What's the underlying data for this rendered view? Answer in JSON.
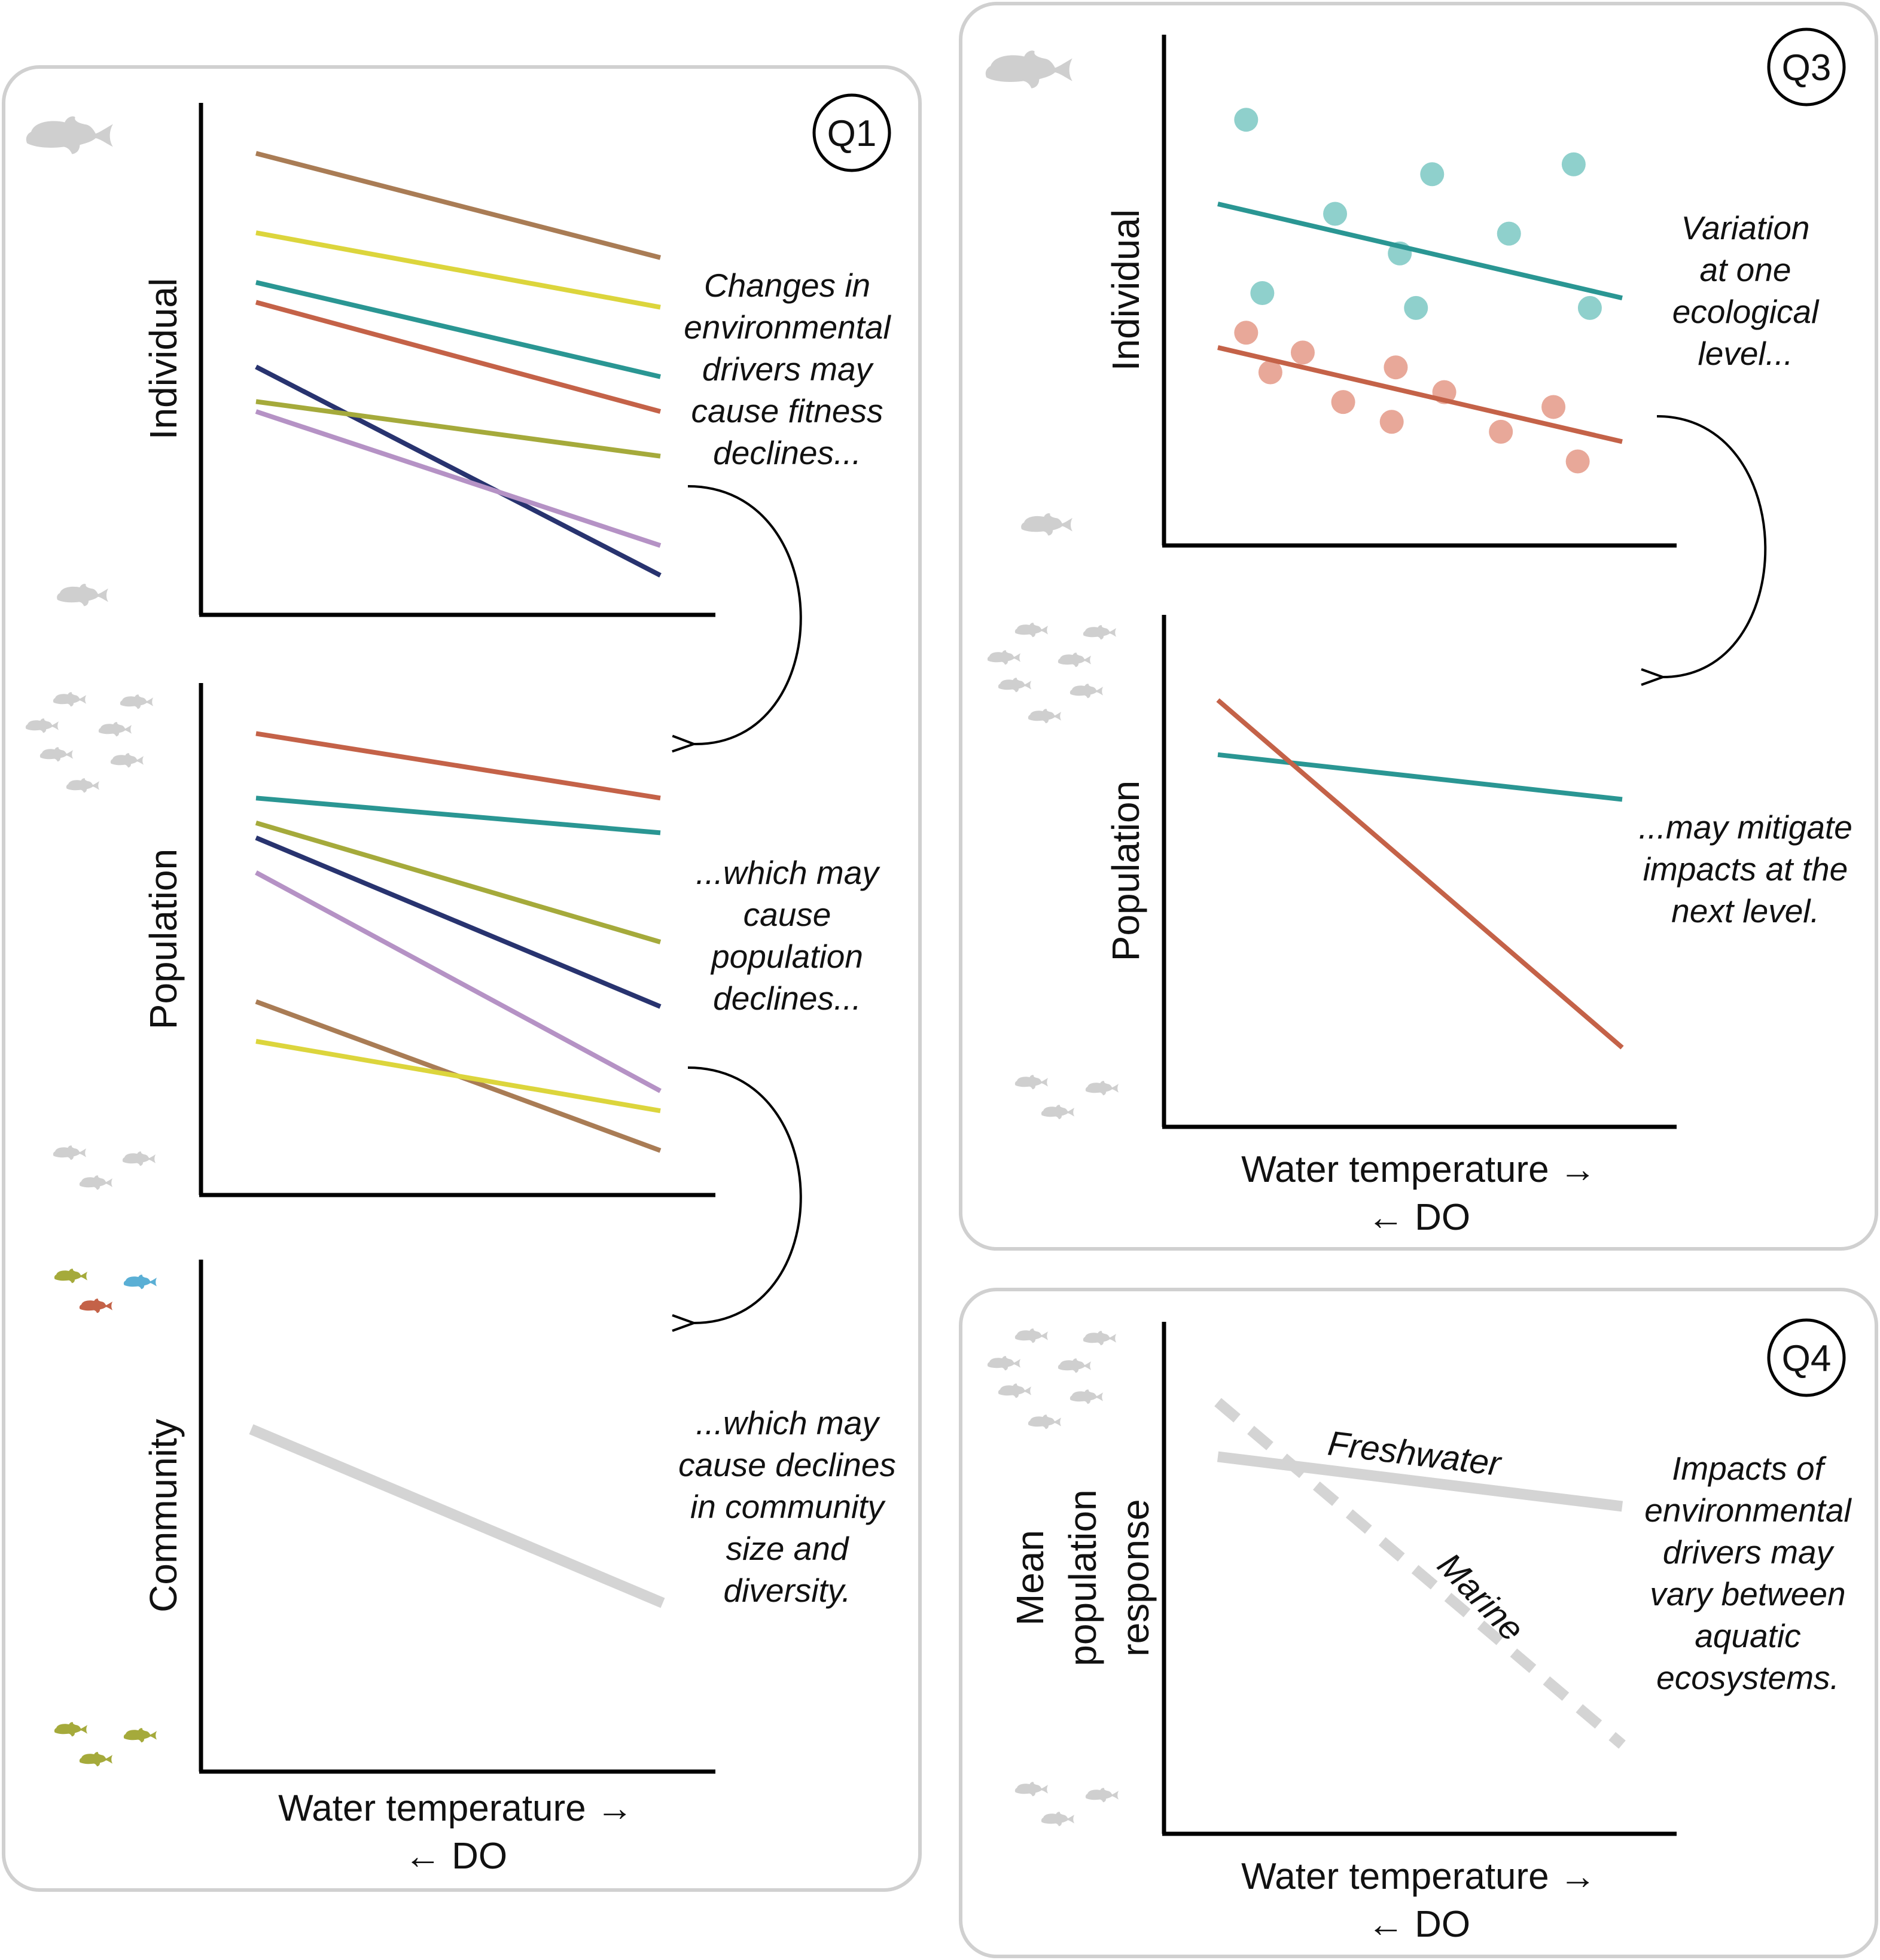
{
  "colors": {
    "panel_border": "#d0d0d0",
    "axis": "#000000",
    "fish_gray": "#cfcfcf",
    "brown": "#a97c55",
    "yellow": "#dcd53c",
    "teal": "#2a9693",
    "red": "#c46248",
    "navy": "#28336f",
    "olive": "#a5aa3b",
    "lavender": "#b592c5",
    "gray_line": "#d4d4d4",
    "light_teal_points": "#8fd0cc",
    "light_red_points": "#e8a899",
    "fish_blue": "#5aafd5",
    "fish_olive": "#a5aa3b",
    "fish_red": "#c46248"
  },
  "icons": [
    "fish-silhouette-icon",
    "curved-arrow-icon"
  ],
  "q1": {
    "badge": "Q1",
    "individual": {
      "ylabel": "Individual",
      "note": [
        "Changes in",
        "environmental",
        "drivers may",
        "cause fitness",
        "declines..."
      ],
      "chart_data": {
        "type": "line",
        "x": [
          0,
          1
        ],
        "ylim": [
          0,
          100
        ],
        "series": [
          {
            "color": "brown",
            "values": [
              92,
              71
            ]
          },
          {
            "color": "yellow",
            "values": [
              76,
              61
            ]
          },
          {
            "color": "teal",
            "values": [
              66,
              47
            ]
          },
          {
            "color": "red",
            "values": [
              62,
              40
            ]
          },
          {
            "color": "navy",
            "values": [
              49,
              7
            ]
          },
          {
            "color": "olive",
            "values": [
              42,
              31
            ]
          },
          {
            "color": "lavender",
            "values": [
              40,
              13
            ]
          }
        ]
      }
    },
    "population": {
      "ylabel": "Population",
      "note": [
        "...which may",
        "cause",
        "population",
        "declines..."
      ],
      "chart_data": {
        "type": "line",
        "x": [
          0,
          1
        ],
        "ylim": [
          0,
          100
        ],
        "series": [
          {
            "color": "red",
            "values": [
              92,
              79
            ]
          },
          {
            "color": "teal",
            "values": [
              79,
              72
            ]
          },
          {
            "color": "olive",
            "values": [
              74,
              50
            ]
          },
          {
            "color": "navy",
            "values": [
              71,
              37
            ]
          },
          {
            "color": "lavender",
            "values": [
              64,
              20
            ]
          },
          {
            "color": "brown",
            "values": [
              38,
              8
            ]
          },
          {
            "color": "yellow",
            "values": [
              30,
              16
            ]
          }
        ]
      }
    },
    "community": {
      "ylabel": "Community",
      "note": [
        "...which may",
        "cause declines",
        "in community",
        "size and",
        "diversity."
      ],
      "xlabel": "Water temperature →",
      "xlabel2": "← DO",
      "chart_data": {
        "type": "line",
        "x": [
          0,
          1
        ],
        "ylim": [
          0,
          100
        ],
        "series": [
          {
            "color": "gray_line",
            "values": [
              68,
              33
            ]
          }
        ]
      }
    }
  },
  "q3": {
    "badge": "Q3",
    "individual": {
      "ylabel": "Individual",
      "note": [
        "Variation",
        "at one",
        "ecological",
        "level..."
      ],
      "chart_data": {
        "type": "scatter",
        "xlim": [
          0,
          1
        ],
        "ylim": [
          0,
          100
        ],
        "series": [
          {
            "color": "teal",
            "line": [
              [
                0,
                68
              ],
              [
                1,
                49
              ]
            ],
            "points": [
              [
                0.07,
                85
              ],
              [
                0.11,
                50
              ],
              [
                0.29,
                66
              ],
              [
                0.45,
                58
              ],
              [
                0.49,
                47
              ],
              [
                0.53,
                74
              ],
              [
                0.72,
                62
              ],
              [
                0.88,
                76
              ],
              [
                0.92,
                47
              ]
            ]
          },
          {
            "color": "red",
            "line": [
              [
                0,
                39
              ],
              [
                1,
                20
              ]
            ],
            "points": [
              [
                0.07,
                42
              ],
              [
                0.13,
                34
              ],
              [
                0.21,
                38
              ],
              [
                0.31,
                28
              ],
              [
                0.43,
                24
              ],
              [
                0.44,
                35
              ],
              [
                0.56,
                30
              ],
              [
                0.7,
                22
              ],
              [
                0.83,
                27
              ],
              [
                0.89,
                16
              ]
            ]
          }
        ]
      }
    },
    "population": {
      "ylabel": "Population",
      "note": [
        "...may mitigate",
        "impacts at the",
        "next level."
      ],
      "xlabel": "Water temperature →",
      "xlabel2": "← DO",
      "chart_data": {
        "type": "line",
        "x": [
          0,
          1
        ],
        "ylim": [
          0,
          100
        ],
        "series": [
          {
            "color": "teal",
            "values": [
              74,
              65
            ]
          },
          {
            "color": "red",
            "values": [
              85,
              15
            ]
          }
        ]
      }
    }
  },
  "q4": {
    "badge": "Q4",
    "ylabel": [
      "Mean",
      "population",
      "response"
    ],
    "note": [
      "Impacts of",
      "environmental",
      "drivers may",
      "vary between",
      "aquatic",
      "ecosystems."
    ],
    "xlabel": "Water temperature →",
    "xlabel2": "← DO",
    "chart_data": {
      "type": "line",
      "x": [
        0,
        1
      ],
      "ylim": [
        0,
        100
      ],
      "series": [
        {
          "name": "Freshwater",
          "color": "gray_line",
          "style": "solid",
          "values": [
            75,
            65
          ]
        },
        {
          "name": "Marine",
          "color": "gray_line",
          "style": "dashed",
          "values": [
            86,
            17
          ]
        }
      ]
    }
  }
}
